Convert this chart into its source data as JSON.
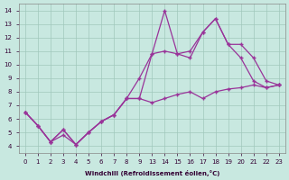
{
  "xlabel": "Windchill (Refroidissement éolien,°C)",
  "background_color": "#c8e8e0",
  "grid_color": "#a0c8bc",
  "line_color": "#993399",
  "xtick_labels": [
    "0",
    "1",
    "2",
    "3",
    "4",
    "5",
    "6",
    "7",
    "8",
    "9",
    "13",
    "14",
    "15",
    "16",
    "17",
    "18",
    "19",
    "20",
    "21",
    "22",
    "23"
  ],
  "yticks": [
    4,
    5,
    6,
    7,
    8,
    9,
    10,
    11,
    12,
    13,
    14
  ],
  "ylim": [
    3.5,
    14.5
  ],
  "line1_y": [
    6.5,
    5.5,
    4.3,
    5.2,
    4.1,
    5.0,
    5.8,
    6.3,
    7.5,
    9.0,
    10.8,
    14.0,
    10.8,
    11.0,
    12.4,
    13.4,
    11.5,
    11.5,
    10.5,
    8.8,
    8.5
  ],
  "line2_y": [
    6.5,
    5.5,
    4.3,
    5.2,
    4.1,
    5.0,
    5.8,
    6.3,
    7.5,
    7.5,
    10.8,
    11.0,
    10.8,
    10.5,
    12.4,
    13.4,
    11.5,
    10.5,
    8.8,
    8.3,
    8.5
  ],
  "line3_y": [
    6.5,
    5.5,
    4.3,
    4.8,
    4.1,
    5.0,
    5.8,
    6.3,
    7.5,
    7.5,
    7.2,
    7.5,
    7.8,
    8.0,
    7.5,
    8.0,
    8.2,
    8.3,
    8.5,
    8.3,
    8.5
  ],
  "marker": "+",
  "markersize": 3,
  "linewidth": 0.9
}
